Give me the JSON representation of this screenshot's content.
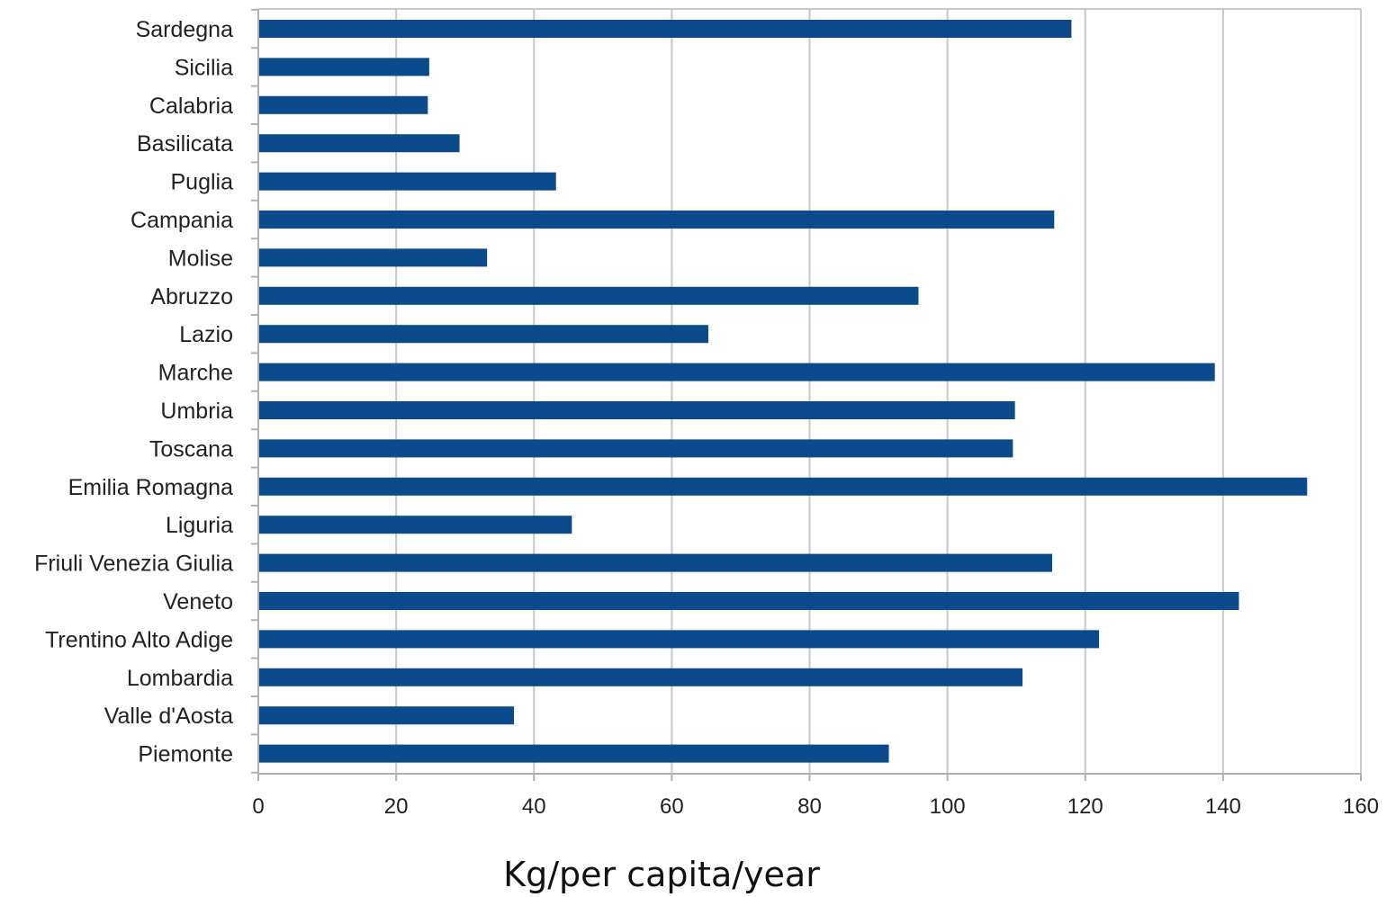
{
  "chart_data": {
    "type": "bar",
    "orientation": "horizontal",
    "title": "",
    "xlabel": "Kg/per capita/year",
    "ylabel": "",
    "xlim": [
      0,
      160
    ],
    "xticks": [
      0,
      20,
      40,
      60,
      80,
      100,
      120,
      140,
      160
    ],
    "grid": "vertical",
    "legend": "none",
    "bar_color": "#0b4a8b",
    "categories": [
      "Sardegna",
      "Sicilia",
      "Calabria",
      "Basilicata",
      "Puglia",
      "Campania",
      "Molise",
      "Abruzzo",
      "Lazio",
      "Marche",
      "Umbria",
      "Toscana",
      "Emilia Romagna",
      "Liguria",
      "Friuli Venezia Giulia",
      "Veneto",
      "Trentino Alto Adige",
      "Lombardia",
      "Valle d'Aosta",
      "Piemonte"
    ],
    "values": [
      118,
      24.8,
      24.6,
      29.2,
      43.2,
      115.5,
      33.2,
      95.8,
      65.3,
      138.8,
      109.8,
      109.5,
      152.2,
      45.5,
      115.2,
      142.3,
      122,
      110.9,
      37.1,
      91.5
    ]
  }
}
